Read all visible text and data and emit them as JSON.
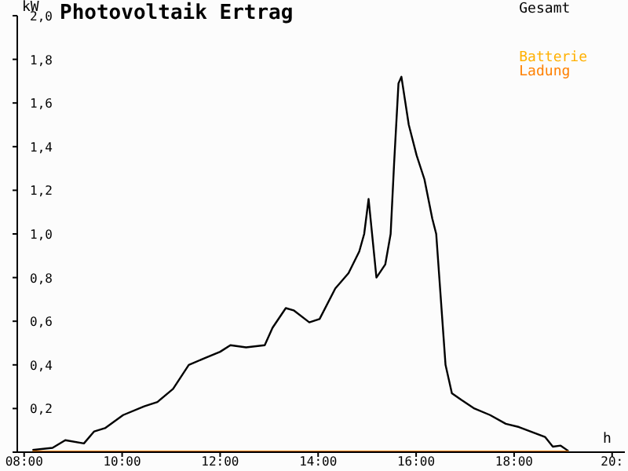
{
  "chart_data": {
    "type": "line",
    "title": "Photovoltaik Ertrag",
    "xlabel": "h",
    "ylabel": "kW",
    "xlim": [
      7.86,
      20.26
    ],
    "ylim": [
      0,
      2.0
    ],
    "xticks": [
      {
        "value": 8,
        "label": "08:00"
      },
      {
        "value": 10,
        "label": "10:00"
      },
      {
        "value": 12,
        "label": "12:00"
      },
      {
        "value": 14,
        "label": "14:00"
      },
      {
        "value": 16,
        "label": "16:00"
      },
      {
        "value": 18,
        "label": "18:00"
      },
      {
        "value": 20,
        "label": "20:"
      }
    ],
    "yticks": [
      {
        "value": 0,
        "label": null
      },
      {
        "value": 0.2,
        "label": "0,2"
      },
      {
        "value": 0.4,
        "label": "0,4"
      },
      {
        "value": 0.6,
        "label": "0,6"
      },
      {
        "value": 0.8,
        "label": "0,8"
      },
      {
        "value": 1.0,
        "label": "1,0"
      },
      {
        "value": 1.2,
        "label": "1,2"
      },
      {
        "value": 1.4,
        "label": "1,4"
      },
      {
        "value": 1.6,
        "label": "1,6"
      },
      {
        "value": 1.8,
        "label": "1,8"
      },
      {
        "value": 2.0,
        "label": "2,0"
      }
    ],
    "grid": false,
    "legend": "top right",
    "marker": "none",
    "line_style": "solid",
    "series": [
      {
        "name": "Gesamt",
        "color": "#000000",
        "x": [
          8.17,
          8.58,
          8.84,
          9.22,
          9.43,
          9.65,
          10.02,
          10.45,
          10.72,
          11.04,
          11.36,
          11.68,
          12.0,
          12.21,
          12.53,
          12.91,
          13.07,
          13.34,
          13.5,
          13.82,
          14.03,
          14.35,
          14.62,
          14.84,
          14.94,
          15.03,
          15.19,
          15.37,
          15.48,
          15.55,
          15.64,
          15.7,
          15.85,
          16.01,
          16.17,
          16.33,
          16.41,
          16.6,
          16.73,
          16.92,
          17.19,
          17.51,
          17.83,
          18.1,
          18.63,
          18.79,
          18.95,
          19.11
        ],
        "values": [
          0.01,
          0.02,
          0.055,
          0.04,
          0.095,
          0.11,
          0.17,
          0.21,
          0.23,
          0.29,
          0.4,
          0.43,
          0.46,
          0.49,
          0.48,
          0.49,
          0.57,
          0.66,
          0.65,
          0.595,
          0.61,
          0.75,
          0.82,
          0.92,
          1.0,
          1.16,
          0.8,
          0.86,
          1.0,
          1.32,
          1.69,
          1.72,
          1.5,
          1.36,
          1.25,
          1.07,
          1.0,
          0.4,
          0.27,
          0.24,
          0.2,
          0.17,
          0.13,
          0.115,
          0.07,
          0.025,
          0.03,
          0.005
        ]
      },
      {
        "name": "Batterie",
        "color": "#ffb000"
      },
      {
        "name": "Ladung",
        "color": "#ff8000",
        "x": [
          8.17,
          19.11
        ],
        "values": [
          0,
          0
        ]
      }
    ]
  }
}
